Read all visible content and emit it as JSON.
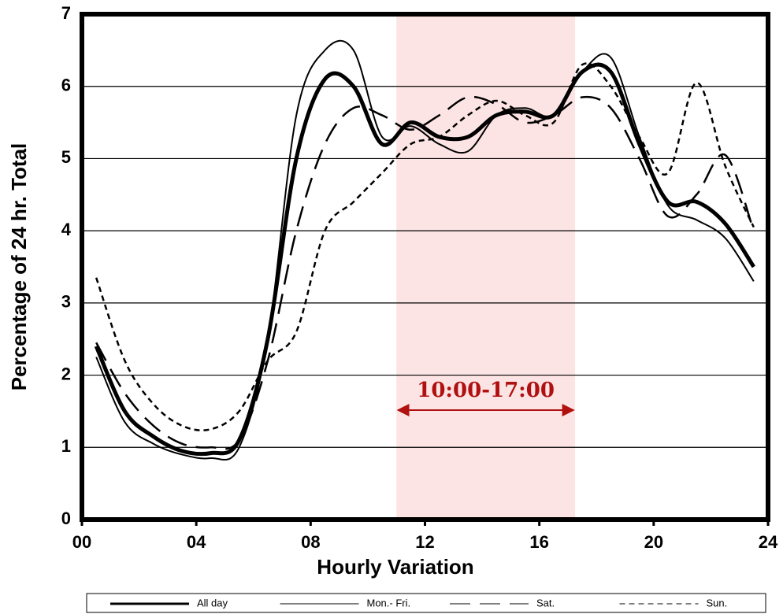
{
  "chart_data": {
    "type": "line",
    "xlabel": "Hourly Variation",
    "ylabel": "Percentage of 24 hr. Total",
    "x": [
      0.5,
      1.5,
      2.5,
      3.5,
      4.5,
      5.5,
      6.5,
      7.5,
      8.5,
      9.5,
      10.5,
      11.5,
      12.5,
      13.5,
      14.5,
      15.5,
      16.5,
      17.5,
      18.5,
      19.5,
      20.5,
      21.5,
      22.5,
      23.5
    ],
    "series": [
      {
        "name": "All day",
        "color": "#000000",
        "style": "thick",
        "values": [
          2.4,
          1.5,
          1.15,
          0.95,
          0.92,
          1.1,
          2.5,
          5.0,
          6.1,
          6.0,
          5.2,
          5.5,
          5.3,
          5.3,
          5.6,
          5.65,
          5.6,
          6.2,
          6.2,
          5.2,
          4.4,
          4.4,
          4.1,
          3.5
        ]
      },
      {
        "name": "Mon.- Fri.",
        "color": "#000000",
        "style": "thin",
        "values": [
          2.25,
          1.35,
          1.05,
          0.9,
          0.85,
          1.0,
          2.5,
          5.6,
          6.5,
          6.5,
          5.3,
          5.45,
          5.2,
          5.1,
          5.6,
          5.7,
          5.6,
          6.2,
          6.4,
          5.3,
          4.35,
          4.15,
          3.9,
          3.3
        ]
      },
      {
        "name": "Sat.",
        "color": "#000000",
        "style": "long-dash",
        "values": [
          2.45,
          1.75,
          1.3,
          1.05,
          1.0,
          1.1,
          2.2,
          4.0,
          5.2,
          5.7,
          5.6,
          5.4,
          5.6,
          5.85,
          5.75,
          5.5,
          5.6,
          5.85,
          5.7,
          5.0,
          4.2,
          4.5,
          5.05,
          4.0
        ]
      },
      {
        "name": "Sun.",
        "color": "#000000",
        "style": "short-dash",
        "values": [
          3.35,
          2.2,
          1.6,
          1.3,
          1.25,
          1.5,
          2.2,
          2.6,
          4.0,
          4.4,
          4.8,
          5.2,
          5.3,
          5.6,
          5.8,
          5.6,
          5.5,
          6.3,
          6.0,
          5.3,
          4.8,
          6.05,
          4.9,
          4.05
        ]
      }
    ],
    "xlim": [
      0,
      24
    ],
    "xticks": [
      {
        "value": 0,
        "label": "00"
      },
      {
        "value": 4,
        "label": "04"
      },
      {
        "value": 8,
        "label": "08"
      },
      12,
      16,
      20,
      24
    ],
    "ylim": [
      0,
      7
    ],
    "yticks": [
      0,
      1,
      2,
      3,
      4,
      5,
      6,
      7
    ],
    "grid": true,
    "legend": "bottom",
    "highlight": {
      "x": [
        11,
        17.25
      ],
      "color": "#fde4e4",
      "label": "10:00-17:00",
      "label_color": "#b01010"
    }
  }
}
